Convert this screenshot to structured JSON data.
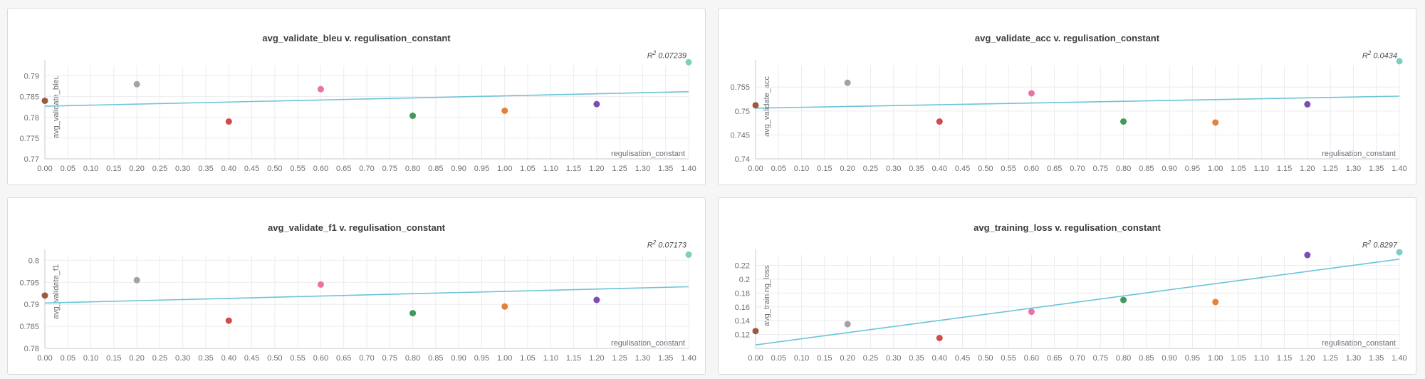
{
  "chart_data": [
    {
      "type": "scatter",
      "title": "avg_validate_bleu v. regulisation_constant",
      "xlabel": "regulisation_constant",
      "ylabel": "avg_validate_bleu",
      "r2_label": "0.07239",
      "xlim": [
        0,
        1.4
      ],
      "ylim": [
        0.77,
        0.7925
      ],
      "xticks": [
        "0.00",
        "0.05",
        "0.10",
        "0.15",
        "0.20",
        "0.25",
        "0.30",
        "0.35",
        "0.40",
        "0.45",
        "0.50",
        "0.55",
        "0.60",
        "0.65",
        "0.70",
        "0.75",
        "0.80",
        "0.85",
        "0.90",
        "0.95",
        "1.00",
        "1.05",
        "1.10",
        "1.15",
        "1.20",
        "1.25",
        "1.30",
        "1.35",
        "1.40"
      ],
      "yticks": [
        0.77,
        0.775,
        0.78,
        0.785,
        0.79
      ],
      "ytick_labels": [
        "0.77",
        "0.775",
        "0.78",
        "0.785",
        "0.79"
      ],
      "points": [
        {
          "x": 0.0,
          "y": 0.784,
          "color": "#9c5b3f"
        },
        {
          "x": 0.2,
          "y": 0.788,
          "color": "#a3a3a3"
        },
        {
          "x": 0.4,
          "y": 0.779,
          "color": "#d24a4a"
        },
        {
          "x": 0.6,
          "y": 0.7868,
          "color": "#e874a6"
        },
        {
          "x": 0.8,
          "y": 0.7804,
          "color": "#3f9a5a"
        },
        {
          "x": 1.0,
          "y": 0.7816,
          "color": "#e3823a"
        },
        {
          "x": 1.2,
          "y": 0.7832,
          "color": "#7c4eb3"
        },
        {
          "x": 1.4,
          "y": 0.7933,
          "color": "#7fcfc0"
        }
      ],
      "trendline": {
        "y_start": 0.7827,
        "y_end": 0.7862,
        "color": "#6cc4d8"
      }
    },
    {
      "type": "scatter",
      "title": "avg_validate_acc v. regulisation_constant",
      "xlabel": "regulisation_constant",
      "ylabel": "avg_validate_acc",
      "r2_label": "0.0434",
      "xlim": [
        0,
        1.4
      ],
      "ylim": [
        0.74,
        0.7595
      ],
      "xticks": [
        "0.00",
        "0.05",
        "0.10",
        "0.15",
        "0.20",
        "0.25",
        "0.30",
        "0.35",
        "0.40",
        "0.45",
        "0.50",
        "0.55",
        "0.60",
        "0.65",
        "0.70",
        "0.75",
        "0.80",
        "0.85",
        "0.90",
        "0.95",
        "1.00",
        "1.05",
        "1.10",
        "1.15",
        "1.20",
        "1.25",
        "1.30",
        "1.35",
        "1.40"
      ],
      "yticks": [
        0.74,
        0.745,
        0.75,
        0.755
      ],
      "ytick_labels": [
        "0.74",
        "0.745",
        "0.75",
        "0.755"
      ],
      "points": [
        {
          "x": 0.0,
          "y": 0.7512,
          "color": "#9c5b3f"
        },
        {
          "x": 0.2,
          "y": 0.7559,
          "color": "#a3a3a3"
        },
        {
          "x": 0.4,
          "y": 0.7478,
          "color": "#d24a4a"
        },
        {
          "x": 0.6,
          "y": 0.7537,
          "color": "#e874a6"
        },
        {
          "x": 0.8,
          "y": 0.7478,
          "color": "#3f9a5a"
        },
        {
          "x": 1.0,
          "y": 0.7476,
          "color": "#e3823a"
        },
        {
          "x": 1.2,
          "y": 0.7514,
          "color": "#7c4eb3"
        },
        {
          "x": 1.4,
          "y": 0.7604,
          "color": "#7fcfc0"
        }
      ],
      "trendline": {
        "y_start": 0.7506,
        "y_end": 0.7531,
        "color": "#6cc4d8"
      }
    },
    {
      "type": "scatter",
      "title": "avg_validate_f1 v. regulisation_constant",
      "xlabel": "regulisation_constant",
      "ylabel": "avg_validate_f1",
      "r2_label": "0.07173",
      "xlim": [
        0,
        1.4
      ],
      "ylim": [
        0.78,
        0.8012
      ],
      "xticks": [
        "0.00",
        "0.05",
        "0.10",
        "0.15",
        "0.20",
        "0.25",
        "0.30",
        "0.35",
        "0.40",
        "0.45",
        "0.50",
        "0.55",
        "0.60",
        "0.65",
        "0.70",
        "0.75",
        "0.80",
        "0.85",
        "0.90",
        "0.95",
        "1.00",
        "1.05",
        "1.10",
        "1.15",
        "1.20",
        "1.25",
        "1.30",
        "1.35",
        "1.40"
      ],
      "yticks": [
        0.78,
        0.785,
        0.79,
        0.795,
        0.8
      ],
      "ytick_labels": [
        "0.78",
        "0.785",
        "0.79",
        "0.795",
        "0.8"
      ],
      "points": [
        {
          "x": 0.0,
          "y": 0.792,
          "color": "#9c5b3f"
        },
        {
          "x": 0.2,
          "y": 0.7955,
          "color": "#a3a3a3"
        },
        {
          "x": 0.4,
          "y": 0.7863,
          "color": "#d24a4a"
        },
        {
          "x": 0.6,
          "y": 0.7945,
          "color": "#e874a6"
        },
        {
          "x": 0.8,
          "y": 0.788,
          "color": "#3f9a5a"
        },
        {
          "x": 1.0,
          "y": 0.7895,
          "color": "#e3823a"
        },
        {
          "x": 1.2,
          "y": 0.791,
          "color": "#7c4eb3"
        },
        {
          "x": 1.4,
          "y": 0.8013,
          "color": "#7fcfc0"
        }
      ],
      "trendline": {
        "y_start": 0.7903,
        "y_end": 0.794,
        "color": "#6cc4d8"
      }
    },
    {
      "type": "scatter",
      "title": "avg_training_loss v. regulisation_constant",
      "xlabel": "regulisation_constant",
      "ylabel": "avg_training_loss",
      "r2_label": "0.8297",
      "xlim": [
        0,
        1.4
      ],
      "ylim": [
        0.1,
        0.235
      ],
      "xticks": [
        "0.00",
        "0.05",
        "0.10",
        "0.15",
        "0.20",
        "0.25",
        "0.30",
        "0.35",
        "0.40",
        "0.45",
        "0.50",
        "0.55",
        "0.60",
        "0.65",
        "0.70",
        "0.75",
        "0.80",
        "0.85",
        "0.90",
        "0.95",
        "1.00",
        "1.05",
        "1.10",
        "1.15",
        "1.20",
        "1.25",
        "1.30",
        "1.35",
        "1.40"
      ],
      "yticks": [
        0.12,
        0.14,
        0.16,
        0.18,
        0.2,
        0.22
      ],
      "ytick_labels": [
        "0.12",
        "0.14",
        "0.16",
        "0.18",
        "0.2",
        "0.22"
      ],
      "points": [
        {
          "x": 0.0,
          "y": 0.125,
          "color": "#9c5b3f"
        },
        {
          "x": 0.2,
          "y": 0.135,
          "color": "#a3a3a3"
        },
        {
          "x": 0.4,
          "y": 0.115,
          "color": "#d24a4a"
        },
        {
          "x": 0.6,
          "y": 0.153,
          "color": "#e874a6"
        },
        {
          "x": 0.8,
          "y": 0.17,
          "color": "#3f9a5a"
        },
        {
          "x": 1.0,
          "y": 0.167,
          "color": "#e3823a"
        },
        {
          "x": 1.2,
          "y": 0.235,
          "color": "#7c4eb3"
        },
        {
          "x": 1.4,
          "y": 0.239,
          "color": "#7fcfc0"
        }
      ],
      "trendline": {
        "y_start": 0.105,
        "y_end": 0.229,
        "color": "#6cc4d8"
      }
    }
  ]
}
